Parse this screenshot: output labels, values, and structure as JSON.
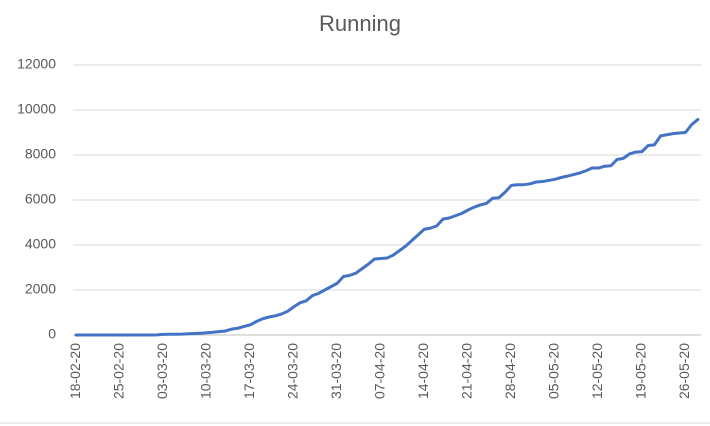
{
  "chart_data": {
    "type": "line",
    "title": "Running",
    "categories": [
      "18-02-20",
      null,
      null,
      null,
      null,
      null,
      null,
      "25-02-20",
      null,
      null,
      null,
      null,
      null,
      null,
      "03-03-20",
      null,
      null,
      null,
      null,
      null,
      null,
      "10-03-20",
      null,
      null,
      null,
      null,
      null,
      null,
      "17-03-20",
      null,
      null,
      null,
      null,
      null,
      null,
      "24-03-20",
      null,
      null,
      null,
      null,
      null,
      null,
      "31-03-20",
      null,
      null,
      null,
      null,
      null,
      null,
      "07-04-20",
      null,
      null,
      null,
      null,
      null,
      null,
      "14-04-20",
      null,
      null,
      null,
      null,
      null,
      null,
      "21-04-20",
      null,
      null,
      null,
      null,
      null,
      null,
      "28-04-20",
      null,
      null,
      null,
      null,
      null,
      null,
      "05-05-20",
      null,
      null,
      null,
      null,
      null,
      null,
      "12-05-20",
      null,
      null,
      null,
      null,
      null,
      null,
      "19-05-20",
      null,
      null,
      null,
      null,
      null,
      null,
      "26-05-20",
      null,
      null
    ],
    "series": [
      {
        "color": "#4472c4",
        "values": [
          0,
          0,
          0,
          0,
          0,
          0,
          0,
          0,
          0,
          0,
          0,
          0,
          0,
          5,
          30,
          35,
          35,
          40,
          55,
          65,
          80,
          100,
          120,
          150,
          180,
          260,
          300,
          380,
          450,
          600,
          720,
          800,
          850,
          930,
          1050,
          1250,
          1430,
          1520,
          1750,
          1850,
          2000,
          2150,
          2300,
          2600,
          2650,
          2750,
          2950,
          3150,
          3380,
          3400,
          3420,
          3550,
          3750,
          3950,
          4200,
          4450,
          4700,
          4750,
          4850,
          5150,
          5200,
          5300,
          5400,
          5550,
          5680,
          5780,
          5850,
          6080,
          6100,
          6350,
          6650,
          6680,
          6680,
          6720,
          6800,
          6820,
          6870,
          6920,
          7000,
          7060,
          7130,
          7200,
          7300,
          7420,
          7420,
          7500,
          7520,
          7800,
          7850,
          8050,
          8130,
          8150,
          8420,
          8450,
          8850,
          8900,
          8950,
          8980,
          9000,
          9350,
          9580
        ]
      }
    ],
    "ylim": [
      0,
      12000
    ],
    "yticks": [
      0,
      2000,
      4000,
      6000,
      8000,
      10000,
      12000
    ],
    "grid": true
  }
}
